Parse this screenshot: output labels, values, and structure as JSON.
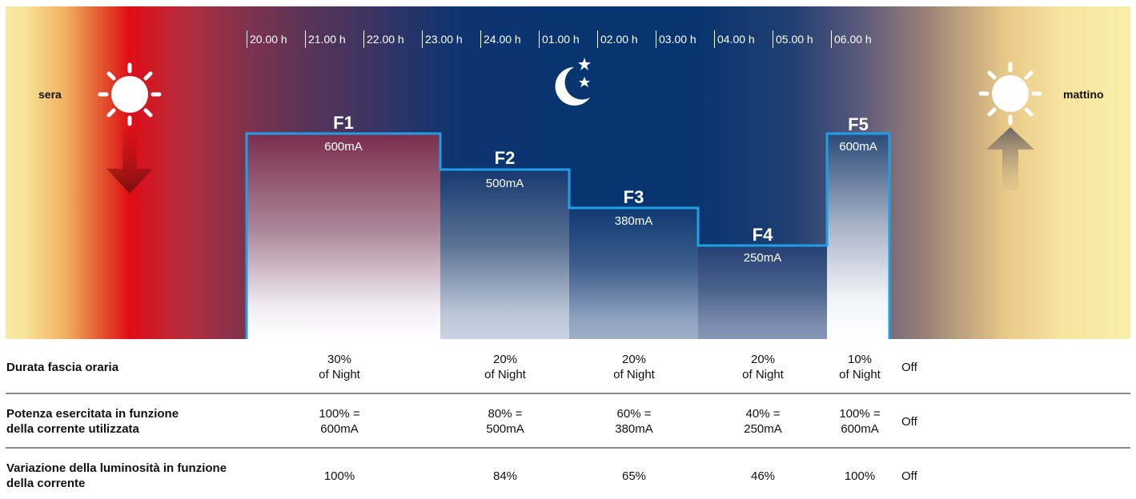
{
  "timeline": {
    "hours": [
      "20.00 h",
      "21.00 h",
      "22.00 h",
      "23.00 h",
      "24.00 h",
      "01.00 h",
      "02.00 h",
      "03.00 h",
      "04.00 h",
      "05.00 h",
      "06.00 h"
    ]
  },
  "labels": {
    "evening": "sera",
    "morning": "mattino"
  },
  "bands": [
    {
      "name": "F1",
      "current": "600mA"
    },
    {
      "name": "F2",
      "current": "500mA"
    },
    {
      "name": "F3",
      "current": "380mA"
    },
    {
      "name": "F4",
      "current": "250mA"
    },
    {
      "name": "F5",
      "current": "600mA"
    }
  ],
  "table": {
    "rows": [
      {
        "label": [
          "Durata fascia oraria",
          ""
        ],
        "cells": [
          [
            "30%",
            "of Night"
          ],
          [
            "20%",
            "of Night"
          ],
          [
            "20%",
            "of Night"
          ],
          [
            "20%",
            "of Night"
          ],
          [
            "10%",
            "of Night"
          ]
        ],
        "off": "Off"
      },
      {
        "label": [
          "Potenza esercitata in funzione",
          "della corrente utilizzata"
        ],
        "cells": [
          [
            "100% =",
            "600mA"
          ],
          [
            "80% =",
            "500mA"
          ],
          [
            "60% =",
            "380mA"
          ],
          [
            "40% =",
            "250mA"
          ],
          [
            "100% =",
            "600mA"
          ]
        ],
        "off": "Off"
      },
      {
        "label": [
          "Variazione della luminosità in funzione",
          "della corrente"
        ],
        "cells": [
          [
            "100%",
            ""
          ],
          [
            "84%",
            ""
          ],
          [
            "65%",
            ""
          ],
          [
            "46%",
            ""
          ],
          [
            "100%",
            ""
          ]
        ],
        "off": "Off"
      }
    ]
  },
  "colors": {
    "outline": "#1f9fe6",
    "bands": [
      "#7a2d4e",
      "#16396f",
      "#0e3a73",
      "#243f73",
      "#2a4a78"
    ]
  }
}
